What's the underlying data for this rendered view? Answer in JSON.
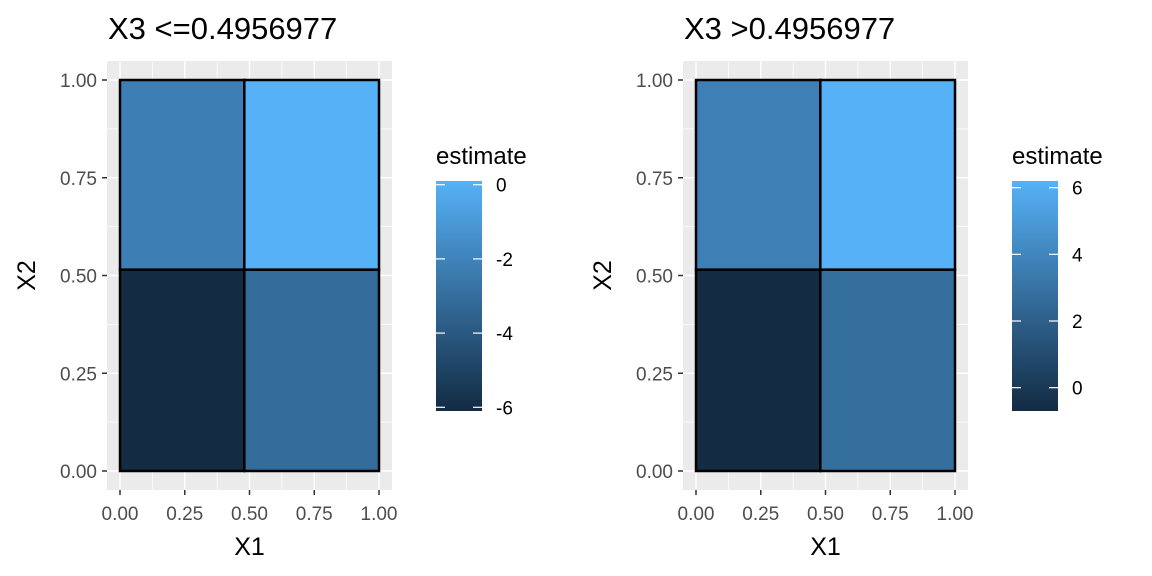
{
  "chart_data": [
    {
      "type": "heatmap",
      "title": "X3 <=0.4956977",
      "xlabel": "X1",
      "ylabel": "X2",
      "xlim": [
        0,
        1
      ],
      "ylim": [
        0,
        1
      ],
      "x_ticks": [
        "0.00",
        "0.25",
        "0.50",
        "0.75",
        "1.00"
      ],
      "y_ticks": [
        "0.00",
        "0.25",
        "0.50",
        "0.75",
        "1.00"
      ],
      "x_split": 0.48,
      "y_split": 0.515,
      "cells": [
        {
          "x": [
            0,
            0.48
          ],
          "y": [
            0,
            0.515
          ],
          "value": -6.1
        },
        {
          "x": [
            0.48,
            1
          ],
          "y": [
            0,
            0.515
          ],
          "value": -3.1
        },
        {
          "x": [
            0,
            0.48
          ],
          "y": [
            0.515,
            1
          ],
          "value": -2.2
        },
        {
          "x": [
            0.48,
            1
          ],
          "y": [
            0.515,
            1
          ],
          "value": 0.1
        }
      ],
      "legend": {
        "title": "estimate",
        "range": [
          -6.1,
          0.1
        ],
        "ticks": [
          0,
          -2,
          -4,
          -6
        ],
        "tick_labels": [
          "0",
          "-2",
          "-4",
          "-6"
        ],
        "low_color": "#132B43",
        "high_color": "#56B1F7"
      },
      "grid": true,
      "legend_placement": "right"
    },
    {
      "type": "heatmap",
      "title": "X3 >0.4956977",
      "xlabel": "X1",
      "ylabel": "X2",
      "xlim": [
        0,
        1
      ],
      "ylim": [
        0,
        1
      ],
      "x_ticks": [
        "0.00",
        "0.25",
        "0.50",
        "0.75",
        "1.00"
      ],
      "y_ticks": [
        "0.00",
        "0.25",
        "0.50",
        "0.75",
        "1.00"
      ],
      "x_split": 0.48,
      "y_split": 0.515,
      "cells": [
        {
          "x": [
            0,
            0.48
          ],
          "y": [
            0,
            0.515
          ],
          "value": -0.7
        },
        {
          "x": [
            0.48,
            1
          ],
          "y": [
            0,
            0.515
          ],
          "value": 2.8
        },
        {
          "x": [
            0,
            0.48
          ],
          "y": [
            0.515,
            1
          ],
          "value": 3.7
        },
        {
          "x": [
            0.48,
            1
          ],
          "y": [
            0.515,
            1
          ],
          "value": 6.2
        }
      ],
      "legend": {
        "title": "estimate",
        "range": [
          -0.7,
          6.2
        ],
        "ticks": [
          6,
          4,
          2,
          0
        ],
        "tick_labels": [
          "6",
          "4",
          "2",
          "0"
        ],
        "low_color": "#132B43",
        "high_color": "#56B1F7"
      },
      "grid": true,
      "legend_placement": "right"
    }
  ]
}
